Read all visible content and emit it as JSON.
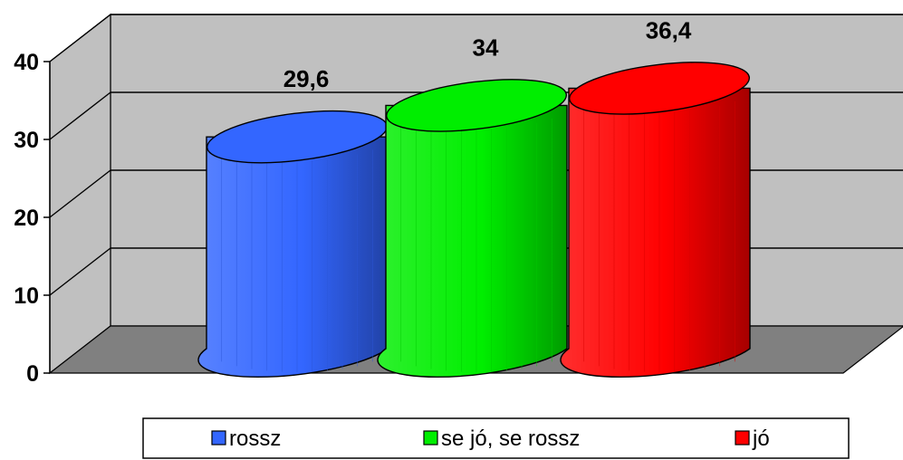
{
  "chart_data": {
    "type": "bar",
    "categories": [
      "rossz",
      "se jó, se rossz",
      "jó"
    ],
    "values": [
      29.6,
      34,
      36.4
    ],
    "value_labels": [
      "29,6",
      "34",
      "36,4"
    ],
    "ylim": [
      0,
      40
    ],
    "yticks": [
      0,
      10,
      20,
      30,
      40
    ],
    "ytick_labels": [
      "0",
      "10",
      "20",
      "30",
      "40"
    ],
    "grid": true,
    "legend_position": "bottom",
    "legend": [
      "rossz",
      "se jó, se rossz",
      "jó"
    ],
    "bar_style": "3d-cylinder",
    "colors": [
      "#3366ff",
      "#00ee00",
      "#ff0000"
    ],
    "wall_color": "#c0c0c0",
    "floor_color": "#808080"
  }
}
